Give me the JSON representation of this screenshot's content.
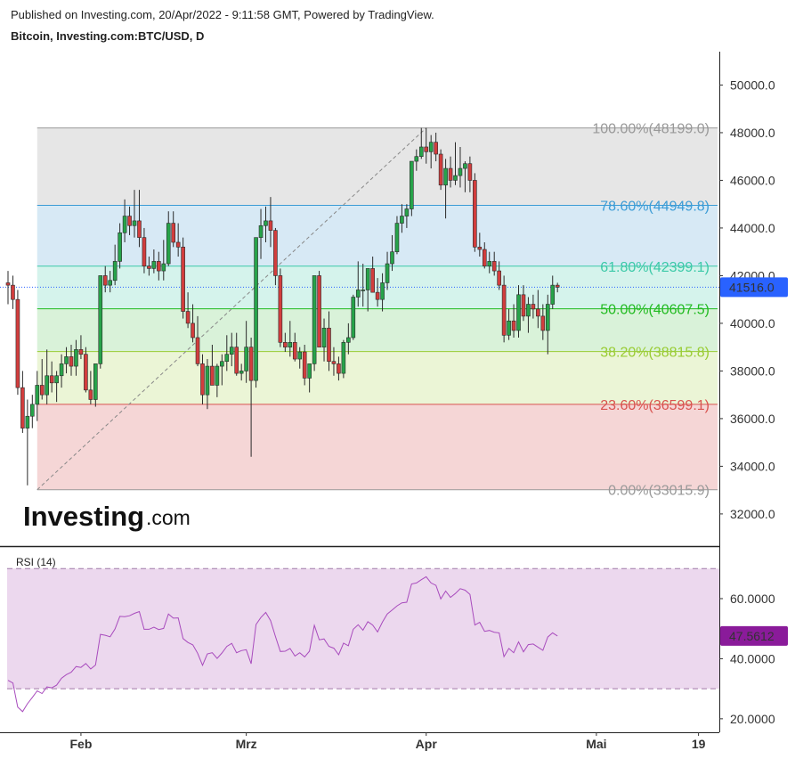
{
  "header": {
    "published": "Published on Investing.com, 20/Apr/2022 - 9:11:58 GMT, Powered by TradingView.",
    "symbol": "Bitcoin, Investing.com:BTC/USD, D"
  },
  "logo": {
    "name": "Investing",
    "suffix": ".com"
  },
  "colors": {
    "up": "#27a34a",
    "down": "#d23d3d",
    "wick": "#2a2a2a",
    "rsi_line": "#a84bbd",
    "rsi_band": "#ecd8ee",
    "price_tag": "#2962ff",
    "rsi_tag": "#8a1b9a"
  },
  "chart_data": [
    {
      "type": "candlestick",
      "title": "Bitcoin, Investing.com:BTC/USD, D",
      "ylim": [
        30800,
        51400
      ],
      "y_ticks": [
        "32000.0",
        "34000.0",
        "36000.0",
        "38000.0",
        "40000.0",
        "42000.0",
        "44000.0",
        "46000.0",
        "48000.0",
        "50000.0"
      ],
      "x_ticks": [
        "Feb",
        "Mrz",
        "Apr",
        "Mai",
        "19"
      ],
      "last_price": "41516.0",
      "fibonacci": [
        {
          "label": "100.00%(48199.0)",
          "level": 48199.0,
          "color": "#999999",
          "fill": "#e6e6e6"
        },
        {
          "label": "78.60%(44949.8)",
          "level": 44949.8,
          "color": "#3c9cd6",
          "fill": "#d7e9f5"
        },
        {
          "label": "61.80%(42399.1)",
          "level": 42399.1,
          "color": "#3cc9a8",
          "fill": "#d5f3ec"
        },
        {
          "label": "50.00%(40607.5)",
          "level": 40607.5,
          "color": "#22bb22",
          "fill": "#d9f2d9"
        },
        {
          "label": "38.20%(38815.8)",
          "level": 38815.8,
          "color": "#99cc33",
          "fill": "#ebf5d6"
        },
        {
          "label": "23.60%(36599.1)",
          "level": 36599.1,
          "color": "#d9534f",
          "fill": "#f5d6d6"
        },
        {
          "label": "0.00%(33015.9)",
          "level": 33015.9,
          "color": "#999999",
          "fill": null
        }
      ],
      "candles": [
        [
          41700,
          42200,
          40800,
          41600
        ],
        [
          41600,
          42000,
          40600,
          41000
        ],
        [
          41000,
          41400,
          37000,
          37300
        ],
        [
          37300,
          38000,
          35400,
          35600
        ],
        [
          35600,
          36800,
          33200,
          36100
        ],
        [
          36100,
          37000,
          35600,
          36600
        ],
        [
          36600,
          38000,
          35900,
          37400
        ],
        [
          37400,
          38500,
          36800,
          37000
        ],
        [
          37000,
          38900,
          36600,
          37800
        ],
        [
          37800,
          38400,
          37100,
          37500
        ],
        [
          37500,
          38000,
          36700,
          37800
        ],
        [
          37800,
          38700,
          37300,
          38300
        ],
        [
          38300,
          39000,
          37900,
          38600
        ],
        [
          38600,
          39100,
          37800,
          38200
        ],
        [
          38200,
          39300,
          37800,
          38900
        ],
        [
          38900,
          39500,
          38500,
          38700
        ],
        [
          38700,
          39000,
          37100,
          37200
        ],
        [
          37200,
          38000,
          36600,
          36800
        ],
        [
          36800,
          38200,
          36500,
          38300
        ],
        [
          38300,
          42000,
          38100,
          42000
        ],
        [
          42000,
          42400,
          41300,
          41600
        ],
        [
          41600,
          42200,
          41300,
          41800
        ],
        [
          41800,
          43300,
          41600,
          42600
        ],
        [
          42600,
          44200,
          42300,
          43800
        ],
        [
          43800,
          45200,
          43400,
          44500
        ],
        [
          44500,
          44900,
          43700,
          44100
        ],
        [
          44100,
          45600,
          43600,
          44300
        ],
        [
          44300,
          45600,
          43200,
          43600
        ],
        [
          43600,
          44000,
          42100,
          42400
        ],
        [
          42400,
          42800,
          42000,
          42300
        ],
        [
          42300,
          43100,
          42100,
          42600
        ],
        [
          42600,
          43000,
          41800,
          42200
        ],
        [
          42200,
          43500,
          41800,
          42500
        ],
        [
          42500,
          44700,
          42400,
          44200
        ],
        [
          44200,
          44700,
          43200,
          43400
        ],
        [
          43400,
          44200,
          42800,
          43200
        ],
        [
          43200,
          43600,
          40200,
          40500
        ],
        [
          40500,
          41300,
          39800,
          40000
        ],
        [
          40000,
          40800,
          39200,
          39400
        ],
        [
          39400,
          40300,
          38200,
          38300
        ],
        [
          38300,
          38700,
          36600,
          37000
        ],
        [
          37000,
          38500,
          36400,
          38200
        ],
        [
          38200,
          39100,
          37500,
          37400
        ],
        [
          37400,
          38300,
          36900,
          38200
        ],
        [
          38200,
          38700,
          37400,
          38400
        ],
        [
          38400,
          39500,
          38000,
          38700
        ],
        [
          38700,
          39600,
          38200,
          39000
        ],
        [
          39000,
          39600,
          37800,
          37900
        ],
        [
          37900,
          38300,
          37600,
          38000
        ],
        [
          38000,
          40100,
          37500,
          39000
        ],
        [
          39000,
          39400,
          34400,
          37600
        ],
        [
          37600,
          43500,
          37300,
          43600
        ],
        [
          43600,
          44800,
          42700,
          44100
        ],
        [
          44100,
          44900,
          43400,
          44300
        ],
        [
          44300,
          45300,
          43200,
          43900
        ],
        [
          43900,
          44000,
          41600,
          42000
        ],
        [
          42000,
          42300,
          39000,
          39200
        ],
        [
          39200,
          39600,
          38800,
          39000
        ],
        [
          39000,
          40100,
          38600,
          39200
        ],
        [
          39200,
          39600,
          38400,
          38500
        ],
        [
          38500,
          39000,
          38100,
          38800
        ],
        [
          38800,
          39100,
          37400,
          37700
        ],
        [
          37700,
          38300,
          37100,
          38300
        ],
        [
          38300,
          42000,
          38000,
          42000
        ],
        [
          42000,
          42200,
          39000,
          39000
        ],
        [
          39000,
          40200,
          38400,
          39800
        ],
        [
          39800,
          40500,
          38000,
          38400
        ],
        [
          38400,
          39000,
          37800,
          38300
        ],
        [
          38300,
          38600,
          37600,
          37900
        ],
        [
          37900,
          39300,
          37700,
          39200
        ],
        [
          39200,
          40000,
          38700,
          39400
        ],
        [
          39400,
          41200,
          39300,
          41100
        ],
        [
          41100,
          42600,
          40700,
          41400
        ],
        [
          41400,
          42500,
          40700,
          41400
        ],
        [
          41400,
          42300,
          40500,
          42300
        ],
        [
          42300,
          42800,
          41400,
          41300
        ],
        [
          41300,
          41900,
          40700,
          41000
        ],
        [
          41000,
          42100,
          40500,
          41700
        ],
        [
          41700,
          43000,
          41400,
          42500
        ],
        [
          42500,
          43700,
          42200,
          43000
        ],
        [
          43000,
          44500,
          42900,
          44200
        ],
        [
          44200,
          45000,
          43800,
          44500
        ],
        [
          44500,
          45000,
          44000,
          44800
        ],
        [
          44800,
          46800,
          44500,
          46800
        ],
        [
          46800,
          47300,
          46400,
          47000
        ],
        [
          47000,
          48200,
          46900,
          47400
        ],
        [
          47400,
          48200,
          46700,
          47200
        ],
        [
          47200,
          47900,
          46500,
          47600
        ],
        [
          47600,
          48000,
          46800,
          47100
        ],
        [
          47100,
          47300,
          45600,
          45800
        ],
        [
          45800,
          46900,
          44400,
          46500
        ],
        [
          46500,
          47000,
          45700,
          46000
        ],
        [
          46000,
          47600,
          45800,
          46200
        ],
        [
          46200,
          47400,
          45700,
          46500
        ],
        [
          46500,
          46800,
          45500,
          46700
        ],
        [
          46700,
          47000,
          45500,
          46000
        ],
        [
          46000,
          46300,
          43000,
          43200
        ],
        [
          43200,
          43800,
          42800,
          43100
        ],
        [
          43100,
          43400,
          42300,
          42400
        ],
        [
          42400,
          43000,
          42100,
          42600
        ],
        [
          42600,
          43000,
          42000,
          42200
        ],
        [
          42200,
          42600,
          41400,
          41600
        ],
        [
          41600,
          42000,
          39200,
          39500
        ],
        [
          39500,
          40600,
          39300,
          40100
        ],
        [
          40100,
          40800,
          39400,
          39700
        ],
        [
          39700,
          41600,
          39400,
          41200
        ],
        [
          41200,
          41600,
          40100,
          40300
        ],
        [
          40300,
          41100,
          39600,
          40800
        ],
        [
          40800,
          41200,
          40200,
          40600
        ],
        [
          40600,
          41400,
          39800,
          40300
        ],
        [
          40300,
          40800,
          39300,
          39700
        ],
        [
          39700,
          41200,
          38700,
          40800
        ],
        [
          40800,
          42000,
          40600,
          41600
        ],
        [
          41600,
          41700,
          41300,
          41516
        ]
      ]
    },
    {
      "type": "line",
      "title": "RSI (14)",
      "ylim": [
        16.1,
        76.6
      ],
      "y_ticks": [
        "20.0000",
        "40.0000",
        "60.0000"
      ],
      "band": [
        30,
        70
      ],
      "last_value": "47.5612",
      "values": [
        32.8,
        31.9,
        23.9,
        22.4,
        25,
        27.1,
        29.3,
        28.4,
        30.6,
        30.3,
        31.2,
        33.5,
        34.7,
        35.5,
        37.4,
        37.1,
        38.4,
        36.6,
        37.9,
        48.1,
        47.8,
        47.3,
        49.9,
        54.1,
        54,
        54.3,
        55.1,
        55.7,
        49.8,
        49.8,
        50.5,
        49.7,
        50.1,
        54.9,
        53.5,
        53.6,
        46.7,
        45.4,
        44.6,
        41.8,
        37.8,
        41.6,
        42,
        40.1,
        41.9,
        44.1,
        45.1,
        42,
        42.7,
        43,
        38.3,
        51.4,
        53.7,
        55.4,
        52.7,
        47.4,
        42.4,
        42.5,
        43.4,
        40.9,
        42,
        40.6,
        42.5,
        51.1,
        46.3,
        46.6,
        44.1,
        43.5,
        41.3,
        45.2,
        44.3,
        49.8,
        51.3,
        49.5,
        52.3,
        51.2,
        48.9,
        52.2,
        54.9,
        56.2,
        57.6,
        58.6,
        58.8,
        64.9,
        65.2,
        66.3,
        67.3,
        65.2,
        64.4,
        59.9,
        62.5,
        60.4,
        61.7,
        63.3,
        62.8,
        61.4,
        51.2,
        52.1,
        49.1,
        49.4,
        48.8,
        48.6,
        40.7,
        43.4,
        42,
        45.6,
        42.3,
        44.7,
        44.9,
        43.8,
        42.8,
        47.2,
        48.6,
        47.56
      ]
    }
  ]
}
